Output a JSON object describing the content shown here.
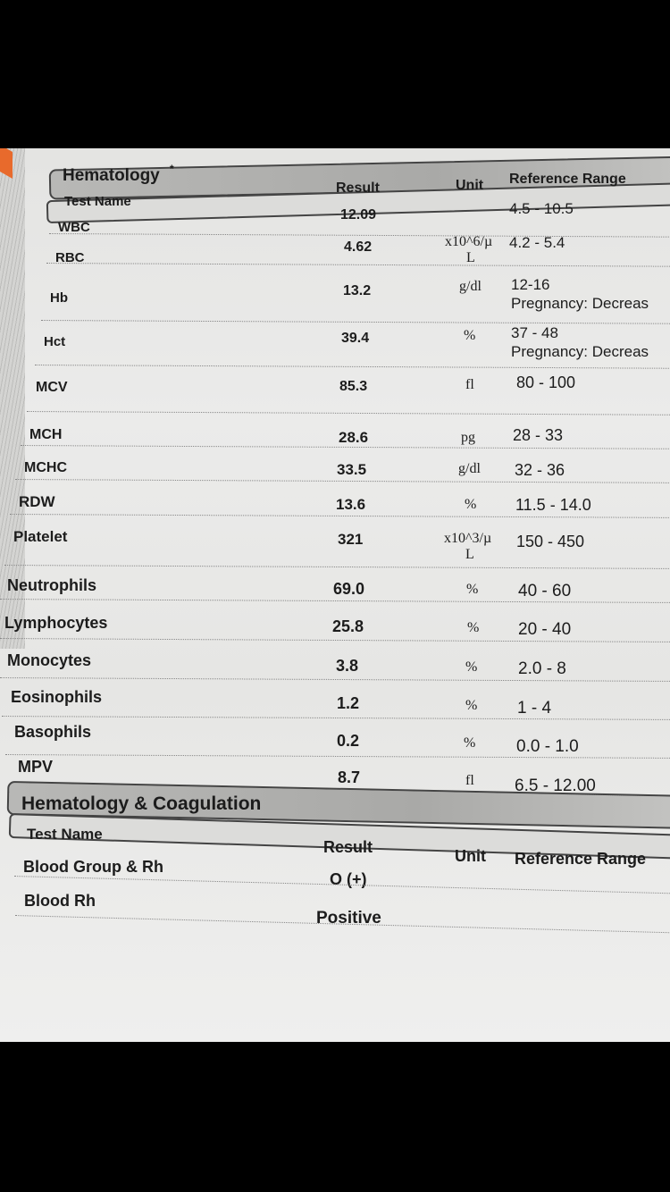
{
  "sections": [
    {
      "title": "Hematology",
      "title_mark": "*",
      "columns": {
        "test_name": "Test Name",
        "result": "Result",
        "unit": "Unit",
        "reference_range": "Reference Range"
      },
      "rows": [
        {
          "name": "WBC",
          "result": "12.09",
          "unit": "",
          "range": "4.5 - 10.5"
        },
        {
          "name": "RBC",
          "result": "4.62",
          "unit": "x10^6/µ",
          "unit2": "L",
          "range": "4.2 - 5.4"
        },
        {
          "name": "Hb",
          "result": "13.2",
          "unit": "g/dl",
          "range": "12-16",
          "range2": "Pregnancy: Decreas"
        },
        {
          "name": "Hct",
          "result": "39.4",
          "unit": "%",
          "range": "37 - 48",
          "range2": "Pregnancy: Decreas"
        },
        {
          "name": "MCV",
          "result": "85.3",
          "unit": "fl",
          "range": "80 - 100"
        },
        {
          "name": "MCH",
          "result": "28.6",
          "unit": "pg",
          "range": "28 - 33"
        },
        {
          "name": "MCHC",
          "result": "33.5",
          "unit": "g/dl",
          "range": "32 - 36"
        },
        {
          "name": "RDW",
          "result": "13.6",
          "unit": "%",
          "range": "11.5 - 14.0"
        },
        {
          "name": "Platelet",
          "result": "321",
          "unit": "x10^3/µ",
          "unit2": "L",
          "range": "150 - 450"
        },
        {
          "name": "Neutrophils",
          "result": "69.0",
          "unit": "%",
          "range": "40 - 60"
        },
        {
          "name": "Lymphocytes",
          "result": "25.8",
          "unit": "%",
          "range": "20 - 40"
        },
        {
          "name": "Monocytes",
          "result": "3.8",
          "unit": "%",
          "range": "2.0 - 8"
        },
        {
          "name": "Eosinophils",
          "result": "1.2",
          "unit": "%",
          "range": "1 - 4"
        },
        {
          "name": "Basophils",
          "result": "0.2",
          "unit": "%",
          "range": "0.0 - 1.0"
        },
        {
          "name": "MPV",
          "result": "8.7",
          "unit": "fl",
          "range": "6.5 - 12.00"
        }
      ]
    },
    {
      "title": "Hematology & Coagulation",
      "columns": {
        "test_name": "Test Name",
        "result": "Result",
        "unit": "Unit",
        "reference_range": "Reference Range"
      },
      "rows": [
        {
          "name": "Blood Group & Rh",
          "result": "O (+)",
          "unit": "",
          "range": ""
        },
        {
          "name": "Blood Rh",
          "result": "Positive",
          "unit": "",
          "range": ""
        }
      ]
    }
  ]
}
